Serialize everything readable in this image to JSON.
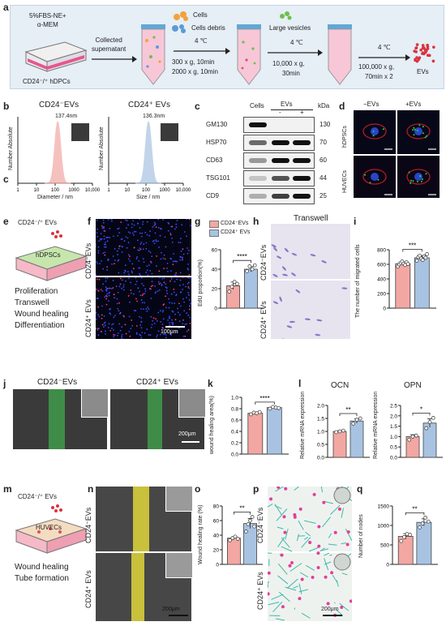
{
  "panel_letters": {
    "a": "a",
    "b": "b",
    "c": "c",
    "c2": "c",
    "d": "d",
    "e": "e",
    "f": "f",
    "g": "g",
    "h": "h",
    "i": "i",
    "j": "j",
    "k": "k",
    "l": "l",
    "m": "m",
    "n": "n",
    "o": "o",
    "p": "p",
    "q": "q"
  },
  "a": {
    "medium": "5%FBS-NE+\nα-MEM",
    "collected": "Collected\nsupernatant",
    "cells_label": "CD24⁻/⁺ hDPCs",
    "temp1": "4 ℃",
    "legend_cells": "Cells",
    "legend_debris": "Cells debris",
    "spin1": "300 x g, 10min",
    "spin2": "2000 x g, 10min",
    "legend_vesicles": "Large vesicles",
    "temp2": "4 ℃",
    "spin3": "10,000 x g,",
    "spin3b": "30min",
    "temp3": "4 ℃",
    "spin4": "100,000 x g,",
    "spin4b": "70min x 2",
    "evs": "EVs"
  },
  "b": {
    "title_neg": "CD24⁻EVs",
    "title_pos": "CD24⁺ EVs",
    "peak_neg": "137.4nm",
    "peak_pos": "136.3nm",
    "ylabel": "Number Absolute",
    "xlabel_neg": "Diameter / nm",
    "xlabel_pos": "Size / nm",
    "ticks": [
      "1",
      "10",
      "100",
      "1000",
      "10,000"
    ]
  },
  "c": {
    "col_cells": "Cells",
    "col_evs": "EVs",
    "minus": "-",
    "plus": "+",
    "kda": "kDa",
    "rows": [
      {
        "name": "GM130",
        "kda": "130"
      },
      {
        "name": "HSP70",
        "kda": "70"
      },
      {
        "name": "CD63",
        "kda": "60"
      },
      {
        "name": "TSG101",
        "kda": "44"
      },
      {
        "name": "CD9",
        "kda": "25"
      }
    ]
  },
  "d": {
    "col_neg": "−EVs",
    "col_pos": "+EVs",
    "row1": "hDPSCs",
    "row2": "HUVECs"
  },
  "e": {
    "title": "CD24⁻/⁺ EVs",
    "cells": "hDPSCs",
    "items": [
      "Proliferation",
      "Transwell",
      "Wound healing",
      "Differentiation"
    ]
  },
  "f": {
    "row1": "CD24⁻EVs",
    "row2": "CD24⁺ EVs",
    "scale": "100μm"
  },
  "g": {
    "legend_neg": "CD24⁻EVs",
    "legend_pos": "CD24⁺ EVs",
    "ylabel": "EdU proportion(%)",
    "sig": "****",
    "yticks": [
      "0",
      "20",
      "40",
      "60"
    ]
  },
  "h": {
    "title": "Transwell",
    "row1": "CD24⁻EVs",
    "row2": "CD24⁺ EVs"
  },
  "i": {
    "ylabel": "The number of migrated cells",
    "sig": "***",
    "yticks": [
      "0",
      "200",
      "400",
      "600",
      "800"
    ]
  },
  "j": {
    "label_neg": "CD24⁻EVs",
    "label_pos": "CD24⁺ EVs",
    "scale": "200μm"
  },
  "k": {
    "ylabel": "wound healing area(%)",
    "sig": "****",
    "yticks": [
      "0.0",
      "0.2",
      "0.4",
      "0.6",
      "0.8",
      "1.0"
    ]
  },
  "l": {
    "ocn_title": "OCN",
    "opn_title": "OPN",
    "ylabel": "Relative mRNA expression",
    "ocn_sig": "**",
    "opn_sig": "*",
    "ocn_yticks": [
      "0.0",
      "0.5",
      "1.0",
      "1.5",
      "2.0"
    ],
    "opn_yticks": [
      "0.0",
      "0.5",
      "1.0",
      "1.5",
      "2.0",
      "2.5"
    ]
  },
  "m": {
    "title": "CD24⁻/⁺ EVs",
    "cells": "HUVECs",
    "items": [
      "Wound healing",
      "Tube formation"
    ]
  },
  "n": {
    "row1": "CD24⁻EVs",
    "row2": "CD24⁺ EVs",
    "scale": "200μm"
  },
  "o": {
    "ylabel": "Wound healing rate (%)",
    "sig": "**",
    "yticks": [
      "0",
      "20",
      "40",
      "60",
      "80"
    ]
  },
  "p": {
    "row1": "CD24⁻EVs",
    "row2": "CD24⁺ EVs",
    "scale": "200μm"
  },
  "q": {
    "ylabel": "Number of nodes",
    "sig": "**",
    "yticks": [
      "0",
      "500",
      "1000",
      "1500"
    ]
  },
  "colors": {
    "neg": "#f2a7a3",
    "pos": "#a8c3e2",
    "panel_bg": "#e6eef6"
  },
  "chart_data": [
    {
      "id": "b-neg",
      "type": "area",
      "title": "CD24⁻EVs",
      "xlabel": "Diameter / nm",
      "ylabel": "Number Absolute",
      "x_scale": "log",
      "xlim": [
        1,
        10000
      ],
      "peak_x": 137.4,
      "color": "#f2a7a3"
    },
    {
      "id": "b-pos",
      "type": "area",
      "title": "CD24⁺ EVs",
      "xlabel": "Size / nm",
      "ylabel": "Number Absolute",
      "x_scale": "log",
      "xlim": [
        1,
        10000
      ],
      "peak_x": 136.3,
      "color": "#a8c3e2"
    },
    {
      "id": "g",
      "type": "bar",
      "categories": [
        "CD24⁻EVs",
        "CD24⁺ EVs"
      ],
      "values": [
        23,
        40
      ],
      "ylim": [
        0,
        60
      ],
      "ylabel": "EdU proportion(%)",
      "points": [
        [
          17,
          22,
          27,
          25
        ],
        [
          38,
          43,
          40,
          44
        ]
      ],
      "sig": "****"
    },
    {
      "id": "i",
      "type": "bar",
      "categories": [
        "CD24⁻EVs",
        "CD24⁺ EVs"
      ],
      "values": [
        610,
        690
      ],
      "ylim": [
        0,
        800
      ],
      "ylabel": "The number of migrated cells",
      "points": [
        [
          570,
          600,
          620,
          640,
          610,
          590,
          630,
          605
        ],
        [
          650,
          700,
          720,
          680,
          660,
          710,
          690,
          740
        ]
      ],
      "sig": "***"
    },
    {
      "id": "k",
      "type": "bar",
      "categories": [
        "CD24⁻EVs",
        "CD24⁺ EVs"
      ],
      "values": [
        0.72,
        0.82
      ],
      "ylim": [
        0,
        1.0
      ],
      "ylabel": "wound healing area(%)",
      "points": [
        [
          0.7,
          0.73,
          0.72,
          0.74
        ],
        [
          0.8,
          0.83,
          0.82,
          0.81
        ]
      ],
      "sig": "****"
    },
    {
      "id": "l-ocn",
      "type": "bar",
      "title": "OCN",
      "categories": [
        "CD24⁻EVs",
        "CD24⁺ EVs"
      ],
      "values": [
        1.0,
        1.4
      ],
      "ylim": [
        0,
        2.0
      ],
      "ylabel": "Relative mRNA expression",
      "points": [
        [
          0.97,
          1.0,
          1.03
        ],
        [
          1.3,
          1.45,
          1.5
        ]
      ],
      "sig": "**"
    },
    {
      "id": "l-opn",
      "type": "bar",
      "title": "OPN",
      "categories": [
        "CD24⁻EVs",
        "CD24⁺ EVs"
      ],
      "values": [
        1.0,
        1.65
      ],
      "ylim": [
        0,
        2.5
      ],
      "ylabel": "Relative mRNA expression",
      "points": [
        [
          0.85,
          1.0,
          1.05
        ],
        [
          1.4,
          1.7,
          1.9
        ]
      ],
      "sig": "*"
    },
    {
      "id": "o",
      "type": "bar",
      "categories": [
        "CD24⁻EVs",
        "CD24⁺ EVs"
      ],
      "values": [
        36,
        56
      ],
      "ylim": [
        0,
        80
      ],
      "ylabel": "Wound healing rate (%)",
      "points": [
        [
          33,
          36,
          38,
          35
        ],
        [
          45,
          55,
          60,
          65,
          52
        ]
      ],
      "sig": "**"
    },
    {
      "id": "q",
      "type": "bar",
      "categories": [
        "CD24⁻EVs",
        "CD24⁺ EVs"
      ],
      "values": [
        720,
        1080
      ],
      "ylim": [
        0,
        1500
      ],
      "ylabel": "Number of nodes",
      "points": [
        [
          600,
          700,
          780,
          760
        ],
        [
          950,
          1050,
          1200,
          1100
        ]
      ],
      "sig": "**"
    }
  ]
}
